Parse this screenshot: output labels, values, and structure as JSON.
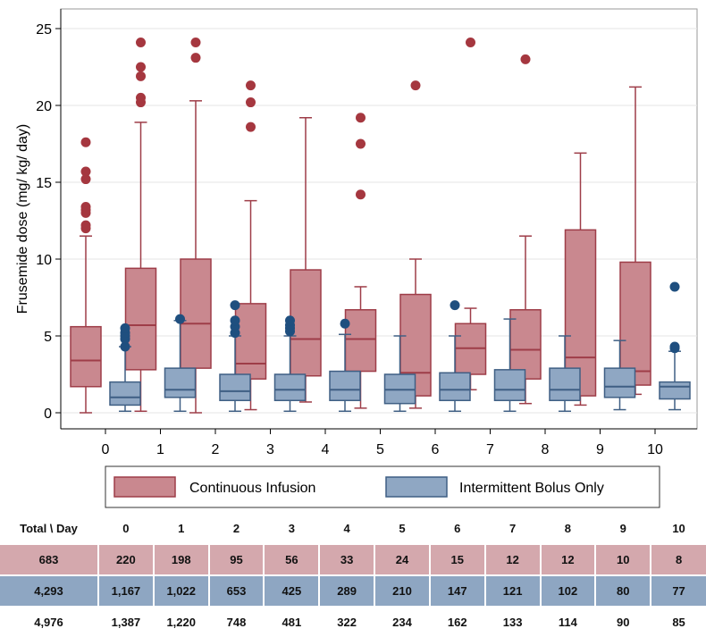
{
  "chart_data": {
    "type": "box",
    "title": "",
    "ylabel": "Frusemide dose (mg/ kg/ day)",
    "xlabel": "",
    "ylim": [
      0,
      25
    ],
    "yticks": [
      0,
      5,
      10,
      15,
      20,
      25
    ],
    "categories": [
      "0",
      "1",
      "2",
      "3",
      "4",
      "5",
      "6",
      "7",
      "8",
      "9",
      "10"
    ],
    "grid": true,
    "legend_position": "bottom",
    "series": [
      {
        "name": "Continuous Infusion",
        "color": "#c9888f",
        "stroke": "#9e3d48",
        "outlier_color": "#a5373f",
        "boxes": [
          {
            "low": 0.0,
            "q1": 1.7,
            "median": 3.4,
            "q3": 5.6,
            "high": 11.5,
            "outliers": [
              12.0,
              12.2,
              13.0,
              13.2,
              13.4,
              15.2,
              15.7,
              17.6
            ]
          },
          {
            "low": 0.1,
            "q1": 2.8,
            "median": 5.7,
            "q3": 9.4,
            "high": 18.9,
            "outliers": [
              20.2,
              20.5,
              21.9,
              22.5,
              24.1
            ]
          },
          {
            "low": 0.0,
            "q1": 2.9,
            "median": 5.8,
            "q3": 10.0,
            "high": 20.3,
            "outliers": [
              23.1,
              24.1
            ]
          },
          {
            "low": 0.2,
            "q1": 2.2,
            "median": 3.2,
            "q3": 7.1,
            "high": 13.8,
            "outliers": [
              18.6,
              20.2,
              21.3
            ]
          },
          {
            "low": 0.7,
            "q1": 2.4,
            "median": 4.8,
            "q3": 9.3,
            "high": 19.2,
            "outliers": []
          },
          {
            "low": 0.3,
            "q1": 2.7,
            "median": 4.8,
            "q3": 6.7,
            "high": 8.2,
            "outliers": [
              14.2,
              17.5,
              19.2
            ]
          },
          {
            "low": 0.3,
            "q1": 1.1,
            "median": 2.6,
            "q3": 7.7,
            "high": 10.0,
            "outliers": [
              21.3
            ]
          },
          {
            "low": 1.5,
            "q1": 2.5,
            "median": 4.2,
            "q3": 5.8,
            "high": 6.8,
            "outliers": [
              24.1
            ]
          },
          {
            "low": 0.6,
            "q1": 2.2,
            "median": 4.1,
            "q3": 6.7,
            "high": 11.5,
            "outliers": [
              23.0
            ]
          },
          {
            "low": 0.5,
            "q1": 1.1,
            "median": 3.6,
            "q3": 11.9,
            "high": 16.9,
            "outliers": []
          },
          {
            "low": 1.2,
            "q1": 1.8,
            "median": 2.7,
            "q3": 9.8,
            "high": 21.2,
            "outliers": []
          }
        ]
      },
      {
        "name": "Intermittent Bolus Only",
        "color": "#8fa7c3",
        "stroke": "#3f5f84",
        "outlier_color": "#1f4f7f",
        "boxes": [
          {
            "low": 0.1,
            "q1": 0.5,
            "median": 1.0,
            "q3": 2.0,
            "high": 4.3,
            "outliers": [
              4.3,
              4.8,
              5.0,
              5.2,
              5.5
            ]
          },
          {
            "low": 0.1,
            "q1": 1.0,
            "median": 1.5,
            "q3": 2.9,
            "high": 6.0,
            "outliers": [
              6.1
            ]
          },
          {
            "low": 0.1,
            "q1": 0.8,
            "median": 1.4,
            "q3": 2.5,
            "high": 5.0,
            "outliers": [
              5.2,
              5.6,
              6.0,
              7.0
            ]
          },
          {
            "low": 0.1,
            "q1": 0.8,
            "median": 1.5,
            "q3": 2.5,
            "high": 5.0,
            "outliers": [
              5.3,
              5.5,
              5.7,
              6.0
            ]
          },
          {
            "low": 0.1,
            "q1": 0.8,
            "median": 1.5,
            "q3": 2.7,
            "high": 5.1,
            "outliers": [
              5.8
            ]
          },
          {
            "low": 0.1,
            "q1": 0.6,
            "median": 1.5,
            "q3": 2.5,
            "high": 5.0,
            "outliers": []
          },
          {
            "low": 0.1,
            "q1": 0.8,
            "median": 1.5,
            "q3": 2.6,
            "high": 5.0,
            "outliers": [
              7.0
            ]
          },
          {
            "low": 0.1,
            "q1": 0.8,
            "median": 1.5,
            "q3": 2.8,
            "high": 6.1,
            "outliers": []
          },
          {
            "low": 0.1,
            "q1": 0.8,
            "median": 1.5,
            "q3": 2.9,
            "high": 5.0,
            "outliers": []
          },
          {
            "low": 0.2,
            "q1": 1.0,
            "median": 1.7,
            "q3": 2.9,
            "high": 4.7,
            "outliers": []
          },
          {
            "low": 0.2,
            "q1": 0.9,
            "median": 1.7,
            "q3": 2.0,
            "high": 4.0,
            "outliers": [
              4.2,
              4.3,
              8.2
            ]
          }
        ]
      }
    ]
  },
  "table": {
    "header": [
      "Total \\ Day",
      "0",
      "1",
      "2",
      "3",
      "4",
      "5",
      "6",
      "7",
      "8",
      "9",
      "10"
    ],
    "continuous_row": [
      "683",
      "220",
      "198",
      "95",
      "56",
      "33",
      "24",
      "15",
      "12",
      "12",
      "10",
      "8"
    ],
    "bolus_row": [
      "4,293",
      "1,167",
      "1,022",
      "653",
      "425",
      "289",
      "210",
      "147",
      "121",
      "102",
      "80",
      "77"
    ],
    "total_row": [
      "4,976",
      "1,387",
      "1,220",
      "748",
      "481",
      "322",
      "234",
      "162",
      "133",
      "114",
      "90",
      "85"
    ]
  }
}
